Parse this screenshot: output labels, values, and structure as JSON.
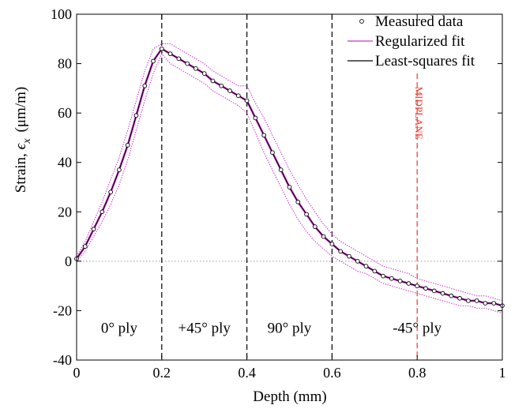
{
  "chart_data": {
    "type": "line",
    "xlabel": "Depth (mm)",
    "ylabel": {
      "prefix": "Strain, ",
      "symbol": "ϵ",
      "subscript": "x",
      "unit": "(μm/m)"
    },
    "xlim": [
      0,
      1
    ],
    "ylim": [
      -40,
      100
    ],
    "xticks": [
      0,
      0.2,
      0.4,
      0.6,
      0.8,
      1
    ],
    "xtick_labels": [
      "0",
      "0.2",
      "0.4",
      "0.6",
      "0.8",
      "1"
    ],
    "yticks": [
      -40,
      -20,
      0,
      20,
      40,
      60,
      80,
      100
    ],
    "ytick_labels": [
      "-40",
      "-20",
      "0",
      "20",
      "40",
      "60",
      "80",
      "100"
    ],
    "grid": false,
    "legend_position": "top-right",
    "zero_line": true,
    "series": [
      {
        "name": "Measured data",
        "kind": "markers",
        "marker": "open-circle",
        "color": "#000000",
        "x": [
          0.0,
          0.02,
          0.04,
          0.06,
          0.08,
          0.1,
          0.12,
          0.14,
          0.16,
          0.18,
          0.2,
          0.22,
          0.24,
          0.26,
          0.28,
          0.3,
          0.32,
          0.34,
          0.36,
          0.38,
          0.4,
          0.42,
          0.44,
          0.46,
          0.48,
          0.5,
          0.52,
          0.54,
          0.56,
          0.58,
          0.6,
          0.62,
          0.64,
          0.66,
          0.68,
          0.7,
          0.72,
          0.74,
          0.76,
          0.78,
          0.8,
          0.82,
          0.84,
          0.86,
          0.88,
          0.9,
          0.92,
          0.94,
          0.96,
          0.98,
          1.0
        ],
        "y": [
          1,
          6,
          13,
          20,
          28,
          37,
          47,
          59,
          71,
          81,
          86,
          84,
          82,
          80,
          78,
          76,
          73,
          71,
          69,
          67,
          65,
          58,
          51,
          44,
          37,
          30,
          24,
          19,
          14,
          10,
          7,
          4,
          2,
          0,
          -2,
          -4,
          -6,
          -7,
          -8,
          -9,
          -10,
          -11,
          -12,
          -13,
          -14,
          -15,
          -16,
          -16,
          -17,
          -17,
          -18
        ]
      },
      {
        "name": "Regularized fit",
        "kind": "line",
        "color": "#cc33cc",
        "x": [
          0.0,
          0.02,
          0.04,
          0.06,
          0.08,
          0.1,
          0.12,
          0.14,
          0.16,
          0.18,
          0.2,
          0.22,
          0.24,
          0.26,
          0.28,
          0.3,
          0.32,
          0.34,
          0.36,
          0.38,
          0.4,
          0.42,
          0.44,
          0.46,
          0.48,
          0.5,
          0.52,
          0.54,
          0.56,
          0.58,
          0.6,
          0.62,
          0.64,
          0.66,
          0.68,
          0.7,
          0.72,
          0.74,
          0.76,
          0.78,
          0.8,
          0.82,
          0.84,
          0.86,
          0.88,
          0.9,
          0.92,
          0.94,
          0.96,
          0.98,
          1.0
        ],
        "y": [
          1,
          6,
          13,
          20,
          28,
          37,
          47,
          59,
          71,
          81,
          86,
          84,
          82,
          80,
          78,
          76,
          73,
          71,
          69,
          67,
          65,
          58,
          51,
          44,
          37,
          30,
          24,
          19,
          14,
          10,
          7,
          4,
          2,
          0,
          -2,
          -4,
          -6,
          -7,
          -8,
          -9,
          -10,
          -11,
          -12,
          -13,
          -14,
          -15,
          -16,
          -16,
          -17,
          -17,
          -18
        ],
        "upper": [
          2,
          8,
          16,
          24,
          33,
          42,
          53,
          65,
          77,
          86,
          88,
          88,
          86,
          84,
          82,
          80,
          77,
          75,
          73,
          71,
          71,
          64,
          58,
          51,
          44,
          37,
          31,
          25,
          20,
          15,
          11,
          8,
          6,
          4,
          2,
          0,
          -2,
          -3,
          -4,
          -5,
          -7,
          -8,
          -9,
          -10,
          -11,
          -12,
          -13,
          -14,
          -14,
          -15,
          -16
        ],
        "lower": [
          0,
          4,
          10,
          16,
          23,
          31,
          41,
          53,
          65,
          76,
          84,
          80,
          78,
          76,
          74,
          72,
          69,
          67,
          65,
          63,
          60,
          52,
          44,
          37,
          30,
          23,
          17,
          12,
          8,
          5,
          2,
          0,
          -2,
          -4,
          -5,
          -7,
          -9,
          -10,
          -11,
          -12,
          -13,
          -14,
          -15,
          -16,
          -17,
          -18,
          -18,
          -19,
          -19,
          -20,
          -21
        ]
      },
      {
        "name": "Least-squares fit",
        "kind": "line",
        "color": "#000000",
        "x": [
          0.0,
          0.02,
          0.04,
          0.06,
          0.08,
          0.1,
          0.12,
          0.14,
          0.16,
          0.18,
          0.2,
          0.22,
          0.24,
          0.26,
          0.28,
          0.3,
          0.32,
          0.34,
          0.36,
          0.38,
          0.4,
          0.42,
          0.44,
          0.46,
          0.48,
          0.5,
          0.52,
          0.54,
          0.56,
          0.58,
          0.6,
          0.62,
          0.64,
          0.66,
          0.68,
          0.7,
          0.72,
          0.74,
          0.76,
          0.78,
          0.8,
          0.82,
          0.84,
          0.86,
          0.88,
          0.9,
          0.92,
          0.94,
          0.96,
          0.98,
          1.0
        ],
        "y": [
          1,
          6,
          13,
          20,
          28,
          37,
          47,
          59,
          71,
          81,
          86,
          84,
          82,
          80,
          78,
          76,
          73,
          71,
          69,
          67,
          65,
          58,
          51,
          44,
          37,
          30,
          24,
          19,
          14,
          10,
          7,
          4,
          2,
          0,
          -2,
          -4,
          -6,
          -7,
          -8,
          -9,
          -10,
          -11,
          -12,
          -13,
          -14,
          -15,
          -16,
          -16,
          -17,
          -17,
          -18
        ]
      }
    ],
    "vertical_lines": [
      {
        "x": 0.2,
        "color": "#000000",
        "style": "dashed"
      },
      {
        "x": 0.4,
        "color": "#000000",
        "style": "dashed"
      },
      {
        "x": 0.6,
        "color": "#000000",
        "style": "dashed"
      },
      {
        "x": 0.8,
        "color": "#e8392f",
        "style": "dashed",
        "label": "MIDPLANE"
      }
    ],
    "region_labels": [
      {
        "text": "0° ply",
        "x": 0.1
      },
      {
        "text": "+45° ply",
        "x": 0.3
      },
      {
        "text": "90° ply",
        "x": 0.5
      },
      {
        "text": "-45° ply",
        "x": 0.8
      }
    ],
    "region_label_y": -27
  }
}
